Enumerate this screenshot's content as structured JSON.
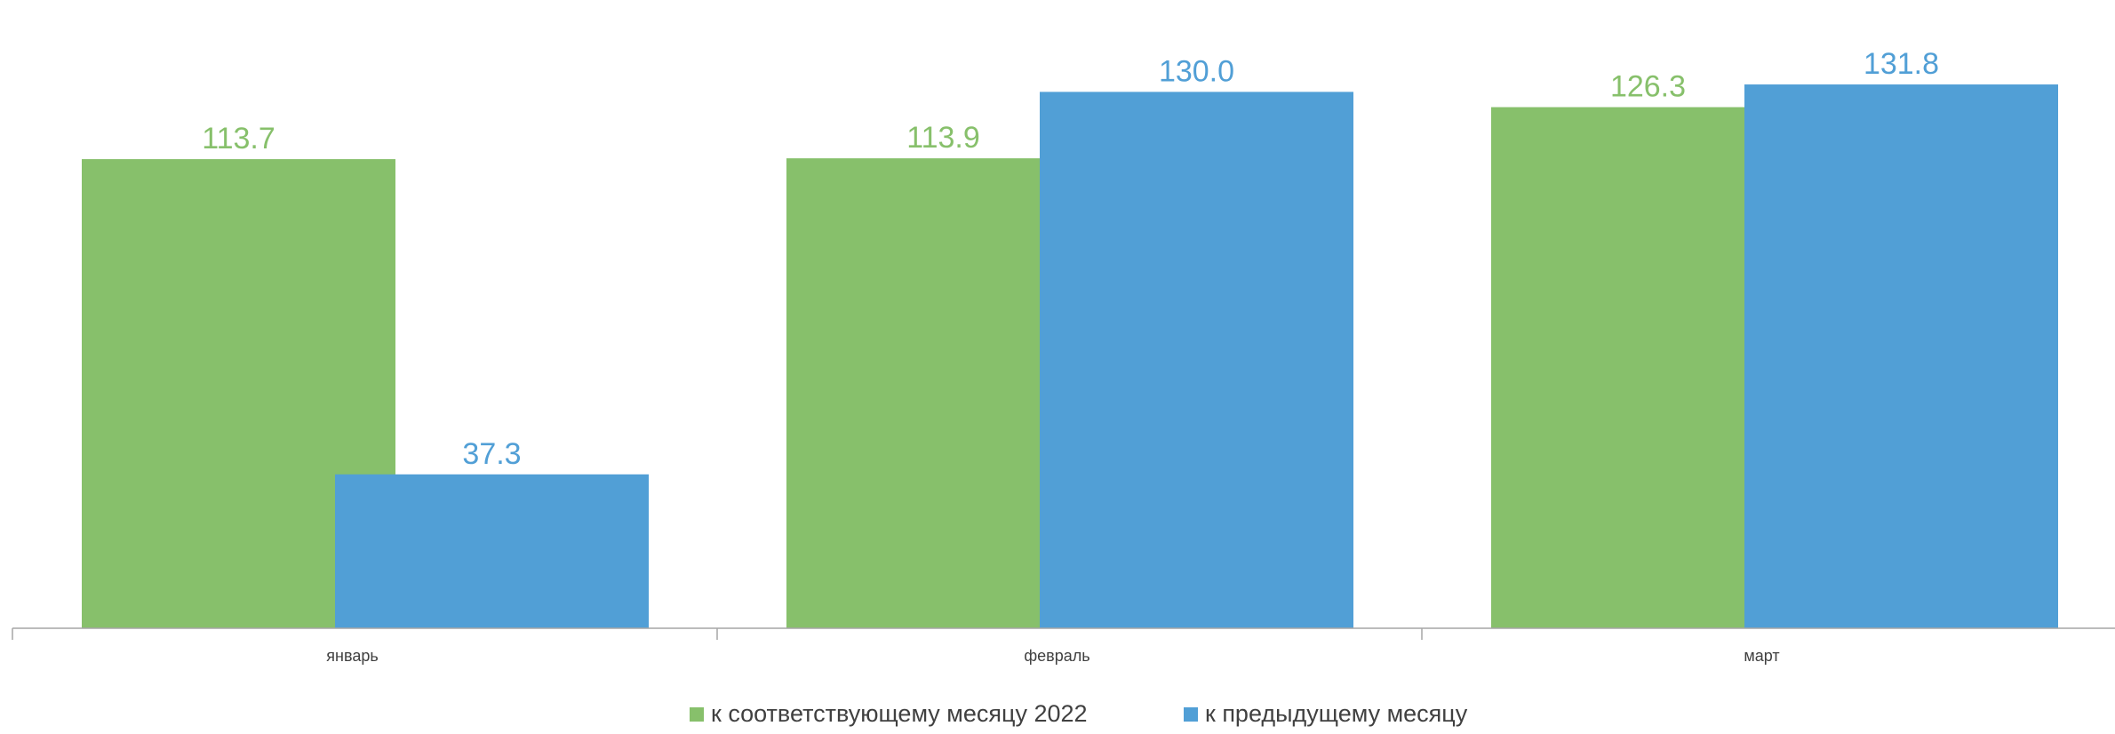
{
  "chart_data": {
    "type": "bar",
    "categories": [
      "январь",
      "февраль",
      "март"
    ],
    "series": [
      {
        "name": "к соответствующему месяцу 2022",
        "values": [
          113.7,
          113.9,
          126.3
        ],
        "color": "#87c06b",
        "labels": [
          "113.7",
          "113.9",
          "126.3"
        ]
      },
      {
        "name": "к предыдущему месяцу",
        "values": [
          37.3,
          130.0,
          131.8
        ],
        "color": "#519fd6",
        "labels": [
          "37.3",
          "130.0",
          "131.8"
        ]
      }
    ],
    "ylim": [
      0,
      141.5
    ],
    "grid": false,
    "legend": "bottom-center",
    "axis_color": "#a6a6a6"
  }
}
